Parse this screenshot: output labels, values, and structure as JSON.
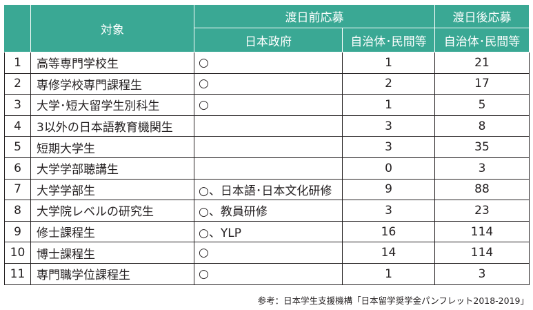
{
  "header": {
    "target": "対象",
    "pre_arrival": "渡日前応募",
    "post_arrival": "渡日後応募",
    "japan_gov": "日本政府",
    "local_private_pre": "自治体･民間等",
    "local_private_post": "自治体･民間等"
  },
  "rows": [
    {
      "no": "1",
      "target": "高等専門学校生",
      "gov": "○",
      "pre": "1",
      "post": "21"
    },
    {
      "no": "2",
      "target": "専修学校専門課程生",
      "gov": "○",
      "pre": "2",
      "post": "17"
    },
    {
      "no": "3",
      "target": "大学･短大留学生別科生",
      "gov": "○",
      "pre": "1",
      "post": "5"
    },
    {
      "no": "4",
      "target": "3以外の日本語教育機関生",
      "gov": "",
      "pre": "3",
      "post": "8"
    },
    {
      "no": "5",
      "target": "短期大学生",
      "gov": "",
      "pre": "3",
      "post": "35"
    },
    {
      "no": "6",
      "target": "大学学部聴講生",
      "gov": "",
      "pre": "0",
      "post": "3"
    },
    {
      "no": "7",
      "target": "大学学部生",
      "gov": "○、日本語･日本文化研修",
      "pre": "9",
      "post": "88"
    },
    {
      "no": "8",
      "target": "大学院レベルの研究生",
      "gov": "○、教員研修",
      "pre": "3",
      "post": "23"
    },
    {
      "no": "9",
      "target": "修士課程生",
      "gov": "○、YLP",
      "pre": "16",
      "post": "114"
    },
    {
      "no": "10",
      "target": "博士課程生",
      "gov": "○",
      "pre": "14",
      "post": "114"
    },
    {
      "no": "11",
      "target": "専門職学位課程生",
      "gov": "○",
      "pre": "1",
      "post": "3"
    }
  ],
  "footnote": "参考：日本学生支援機構「日本留学奨学金パンフレット2018-2019」",
  "colors": {
    "header_bg": "#3aa894",
    "header_text": "#ffffff",
    "border": "#231f20"
  }
}
